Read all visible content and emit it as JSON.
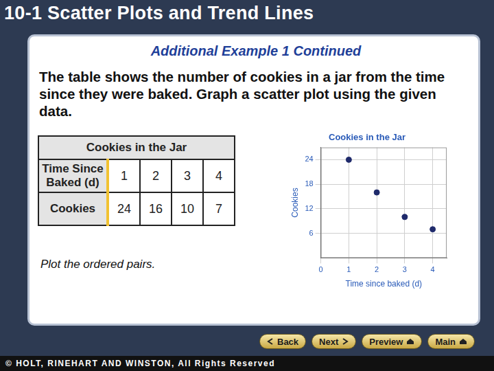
{
  "header": "10-1 Scatter Plots and Trend Lines",
  "subtitle": "Additional Example 1 Continued",
  "text": "The table shows the number of cookies in a jar from the time since they were baked. Graph a scatter plot using the given data.",
  "table": {
    "title": "Cookies in the Jar",
    "rows": [
      [
        "Time Since Baked (d)",
        1,
        2,
        3,
        4
      ],
      [
        "Cookies",
        24,
        16,
        10,
        7
      ]
    ]
  },
  "note": "Plot the ordered pairs.",
  "chart_data": {
    "type": "scatter",
    "title": "Cookies in the Jar",
    "x_label": "Time since baked (d)",
    "y_label": "Cookies",
    "x": [
      1,
      2,
      3,
      4
    ],
    "values": [
      24,
      16,
      10,
      7
    ],
    "color": "#1f2a6b",
    "marker": "circle",
    "xlim": [
      0,
      4.5
    ],
    "xticks": [
      0,
      1,
      2,
      3,
      4
    ],
    "ylim": [
      0,
      27
    ],
    "yticks": [
      6,
      12,
      18,
      24
    ],
    "grid": true
  },
  "nav": [
    "Back",
    "Next",
    "Preview",
    "Main"
  ],
  "footer": "© HOLT, RINEHART AND WINSTON, All Rights Reserved"
}
